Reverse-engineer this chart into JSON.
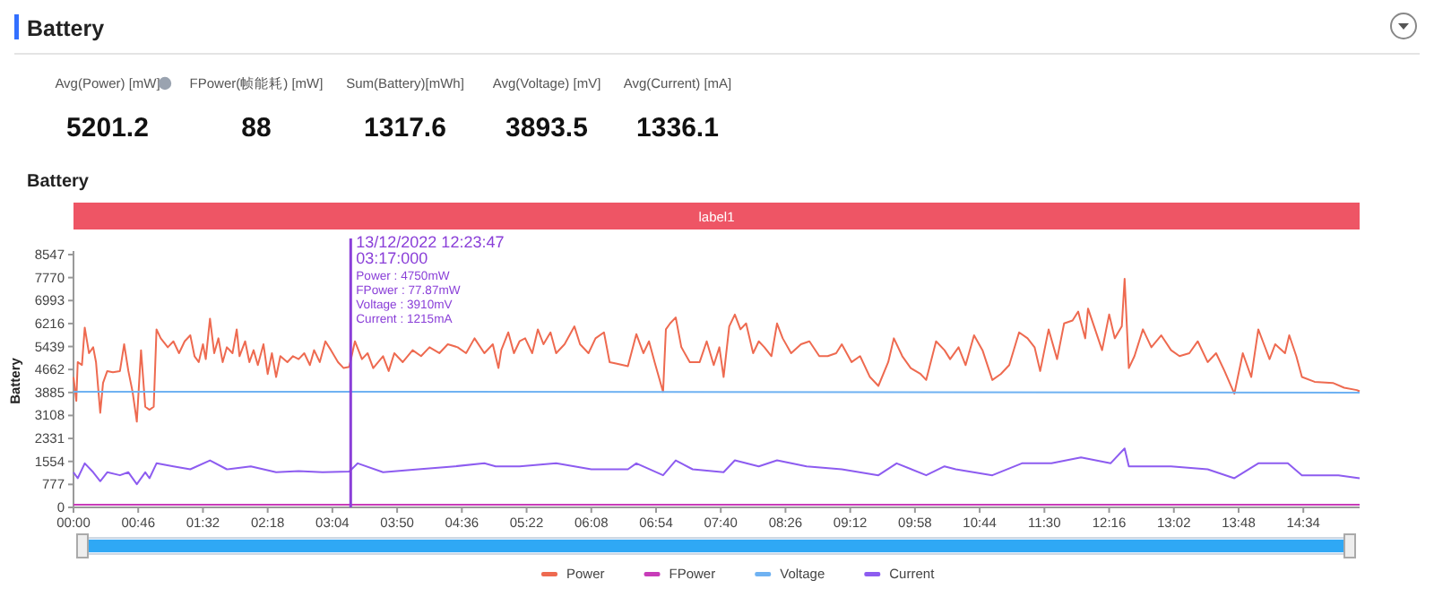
{
  "chart_data": [
    {
      "type": "other",
      "title": "Battery",
      "categories": [
        "Avg(Power) [mW]",
        "FPower(帧能耗) [mW]",
        "Sum(Battery)[mWh]",
        "Avg(Voltage) [mV]",
        "Avg(Current) [mA]"
      ],
      "values": [
        5201.2,
        88,
        1317.6,
        3893.5,
        1336.1
      ],
      "data_labels": true
    },
    {
      "type": "line",
      "title": "Battery",
      "ylabel": "Battery",
      "legend": "bottom",
      "marker": "none",
      "annotations": [
        "label1",
        "13/12/2022 12:23:47",
        "03:17:000",
        "Power   : 4750mW",
        "FPower : 77.87mW",
        "Voltage : 3910mV",
        "Current : 1215mA"
      ],
      "ref_lines": [
        {
          "axis": "x",
          "value": 197,
          "color": "#8a3fd8"
        }
      ],
      "xlim": [
        0,
        914
      ],
      "ylim": [
        0,
        8547
      ],
      "xticks": [
        {
          "value": 0,
          "label": "00:00"
        },
        {
          "value": 46,
          "label": "00:46"
        },
        {
          "value": 92,
          "label": "01:32"
        },
        {
          "value": 138,
          "label": "02:18"
        },
        {
          "value": 184,
          "label": "03:04"
        },
        {
          "value": 230,
          "label": "03:50"
        },
        {
          "value": 276,
          "label": "04:36"
        },
        {
          "value": 322,
          "label": "05:22"
        },
        {
          "value": 368,
          "label": "06:08"
        },
        {
          "value": 414,
          "label": "06:54"
        },
        {
          "value": 460,
          "label": "07:40"
        },
        {
          "value": 506,
          "label": "08:26"
        },
        {
          "value": 552,
          "label": "09:12"
        },
        {
          "value": 598,
          "label": "09:58"
        },
        {
          "value": 644,
          "label": "10:44"
        },
        {
          "value": 690,
          "label": "11:30"
        },
        {
          "value": 736,
          "label": "12:16"
        },
        {
          "value": 782,
          "label": "13:02"
        },
        {
          "value": 828,
          "label": "13:48"
        },
        {
          "value": 874,
          "label": "14:34"
        }
      ],
      "yticks": [
        0,
        777,
        1554,
        2331,
        3108,
        3885,
        4662,
        5439,
        6216,
        6993,
        7770,
        8547
      ],
      "series": [
        {
          "name": "Power",
          "color": "#ee6a50",
          "x": [
            0,
            2,
            3,
            6,
            8,
            11,
            14,
            16,
            19,
            21,
            24,
            28,
            33,
            36,
            39,
            42,
            45,
            48,
            51,
            54,
            57,
            59,
            62,
            67,
            71,
            75,
            79,
            83,
            86,
            89,
            92,
            94,
            97,
            100,
            103,
            106,
            109,
            113,
            116,
            118,
            122,
            125,
            128,
            131,
            135,
            138,
            141,
            144,
            147,
            152,
            156,
            160,
            164,
            168,
            171,
            175,
            179,
            183,
            188,
            192,
            196,
            200,
            205,
            209,
            213,
            220,
            224,
            228,
            234,
            241,
            247,
            253,
            260,
            266,
            273,
            279,
            285,
            292,
            298,
            302,
            304,
            309,
            313,
            317,
            321,
            326,
            330,
            334,
            339,
            343,
            349,
            356,
            360,
            366,
            371,
            377,
            381,
            387,
            394,
            400,
            405,
            409,
            413,
            419,
            421,
            424,
            428,
            432,
            438,
            445,
            450,
            455,
            459,
            462,
            466,
            470,
            474,
            478,
            483,
            487,
            491,
            496,
            500,
            504,
            510,
            517,
            523,
            530,
            536,
            542,
            546,
            553,
            559,
            566,
            572,
            579,
            583,
            589,
            595,
            602,
            606,
            613,
            619,
            623,
            629,
            634,
            640,
            646,
            653,
            659,
            665,
            672,
            678,
            683,
            687,
            693,
            699,
            704,
            710,
            714,
            719,
            721,
            726,
            731,
            736,
            740,
            745,
            747,
            750,
            754,
            760,
            766,
            773,
            780,
            786,
            793,
            799,
            806,
            812,
            818,
            825,
            831,
            837,
            842,
            846,
            850,
            854,
            861,
            864,
            869,
            873,
            882,
            895,
            903,
            912,
            914
          ],
          "values": [
            4408,
            3603,
            4912,
            4811,
            6080,
            5214,
            5415,
            4912,
            3200,
            4207,
            4610,
            4570,
            4610,
            5516,
            4610,
            3905,
            2899,
            5315,
            3402,
            3301,
            3402,
            6019,
            5717,
            5415,
            5616,
            5214,
            5616,
            5818,
            5113,
            4912,
            5516,
            5012,
            6381,
            5214,
            5717,
            4912,
            5415,
            5214,
            6019,
            5113,
            5616,
            4912,
            5315,
            4811,
            5516,
            4509,
            5214,
            4408,
            5113,
            4912,
            5113,
            5012,
            5214,
            4811,
            5315,
            4912,
            5616,
            5315,
            4912,
            4710,
            4750,
            5616,
            5012,
            5214,
            4710,
            5113,
            4610,
            5214,
            4912,
            5315,
            5113,
            5415,
            5214,
            5516,
            5415,
            5214,
            5717,
            5214,
            5516,
            4710,
            5315,
            5918,
            5214,
            5616,
            5717,
            5214,
            6019,
            5516,
            5918,
            5214,
            5516,
            6120,
            5516,
            5214,
            5717,
            5918,
            4912,
            4851,
            4771,
            5858,
            5214,
            5616,
            4912,
            3905,
            6019,
            6220,
            6421,
            5415,
            4912,
            4912,
            5616,
            4811,
            5415,
            4408,
            6120,
            6522,
            6019,
            6220,
            5214,
            5616,
            5415,
            5113,
            6220,
            5717,
            5214,
            5516,
            5616,
            5113,
            5113,
            5214,
            5516,
            4912,
            5113,
            4408,
            4107,
            4912,
            5717,
            5113,
            4710,
            4509,
            4308,
            5616,
            5315,
            5012,
            5415,
            4811,
            5818,
            5315,
            4308,
            4509,
            4811,
            5918,
            5717,
            5415,
            4610,
            6019,
            5012,
            6220,
            6321,
            6623,
            5717,
            6723,
            6019,
            5315,
            6522,
            5717,
            6120,
            7730,
            4710,
            5113,
            6019,
            5415,
            5818,
            5315,
            5113,
            5214,
            5616,
            4912,
            5214,
            4610,
            3845,
            5214,
            4408,
            6019,
            5516,
            5012,
            5516,
            5214,
            5818,
            5113,
            4408,
            4247,
            4207,
            4046,
            3966,
            3925
          ]
        },
        {
          "name": "FPower",
          "color": "#c83cb9",
          "x": [
            0,
            914
          ],
          "values": [
            88,
            88
          ]
        },
        {
          "name": "Voltage",
          "color": "#6fb2f2",
          "x": [
            0,
            197,
            914
          ],
          "values": [
            3910,
            3910,
            3880
          ]
        },
        {
          "name": "Current",
          "color": "#8d5cf0",
          "x": [
            0,
            3,
            8,
            14,
            19,
            24,
            33,
            39,
            45,
            51,
            54,
            59,
            71,
            83,
            97,
            109,
            126,
            144,
            160,
            177,
            196,
            202,
            220,
            245,
            271,
            292,
            300,
            317,
            343,
            368,
            394,
            400,
            419,
            428,
            440,
            462,
            470,
            487,
            500,
            521,
            546,
            572,
            585,
            606,
            619,
            627,
            653,
            674,
            695,
            716,
            737,
            747,
            750,
            780,
            806,
            825,
            842,
            863,
            873,
            899,
            914
          ],
          "values": [
            1188,
            986,
            1490,
            1188,
            886,
            1188,
            1087,
            1188,
            785,
            1188,
            986,
            1490,
            1389,
            1288,
            1590,
            1288,
            1389,
            1188,
            1228,
            1188,
            1215,
            1490,
            1188,
            1288,
            1389,
            1490,
            1389,
            1389,
            1490,
            1288,
            1288,
            1490,
            1087,
            1590,
            1288,
            1188,
            1590,
            1389,
            1590,
            1389,
            1288,
            1087,
            1490,
            1087,
            1389,
            1288,
            1087,
            1490,
            1490,
            1691,
            1490,
            1993,
            1389,
            1389,
            1288,
            986,
            1490,
            1490,
            1087,
            1087,
            986
          ]
        }
      ]
    }
  ]
}
